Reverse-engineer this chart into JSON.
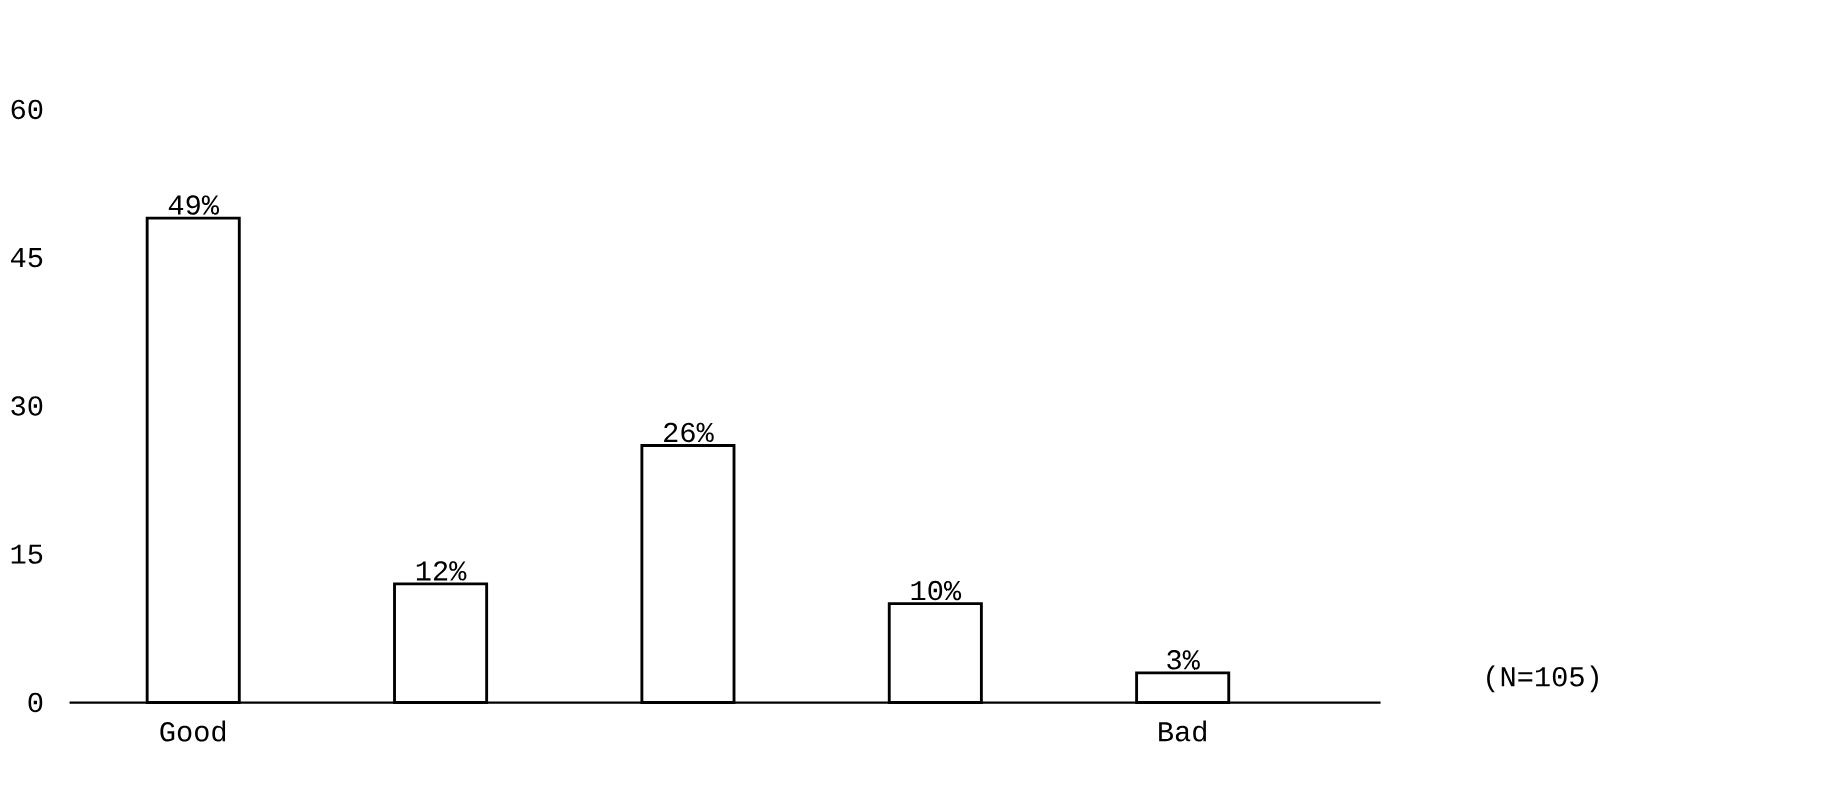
{
  "chart_data": {
    "type": "bar",
    "categories": [
      "Good",
      null,
      null,
      null,
      "Bad"
    ],
    "values": [
      49,
      12,
      26,
      10,
      3
    ],
    "value_labels": [
      "49%",
      "12%",
      "26%",
      "10%",
      "3%"
    ],
    "color": "#ffffff",
    "ylim": [
      0,
      60
    ],
    "yticks": [
      0,
      15,
      30,
      45,
      60
    ],
    "annotations": [
      "(N=105)"
    ]
  }
}
